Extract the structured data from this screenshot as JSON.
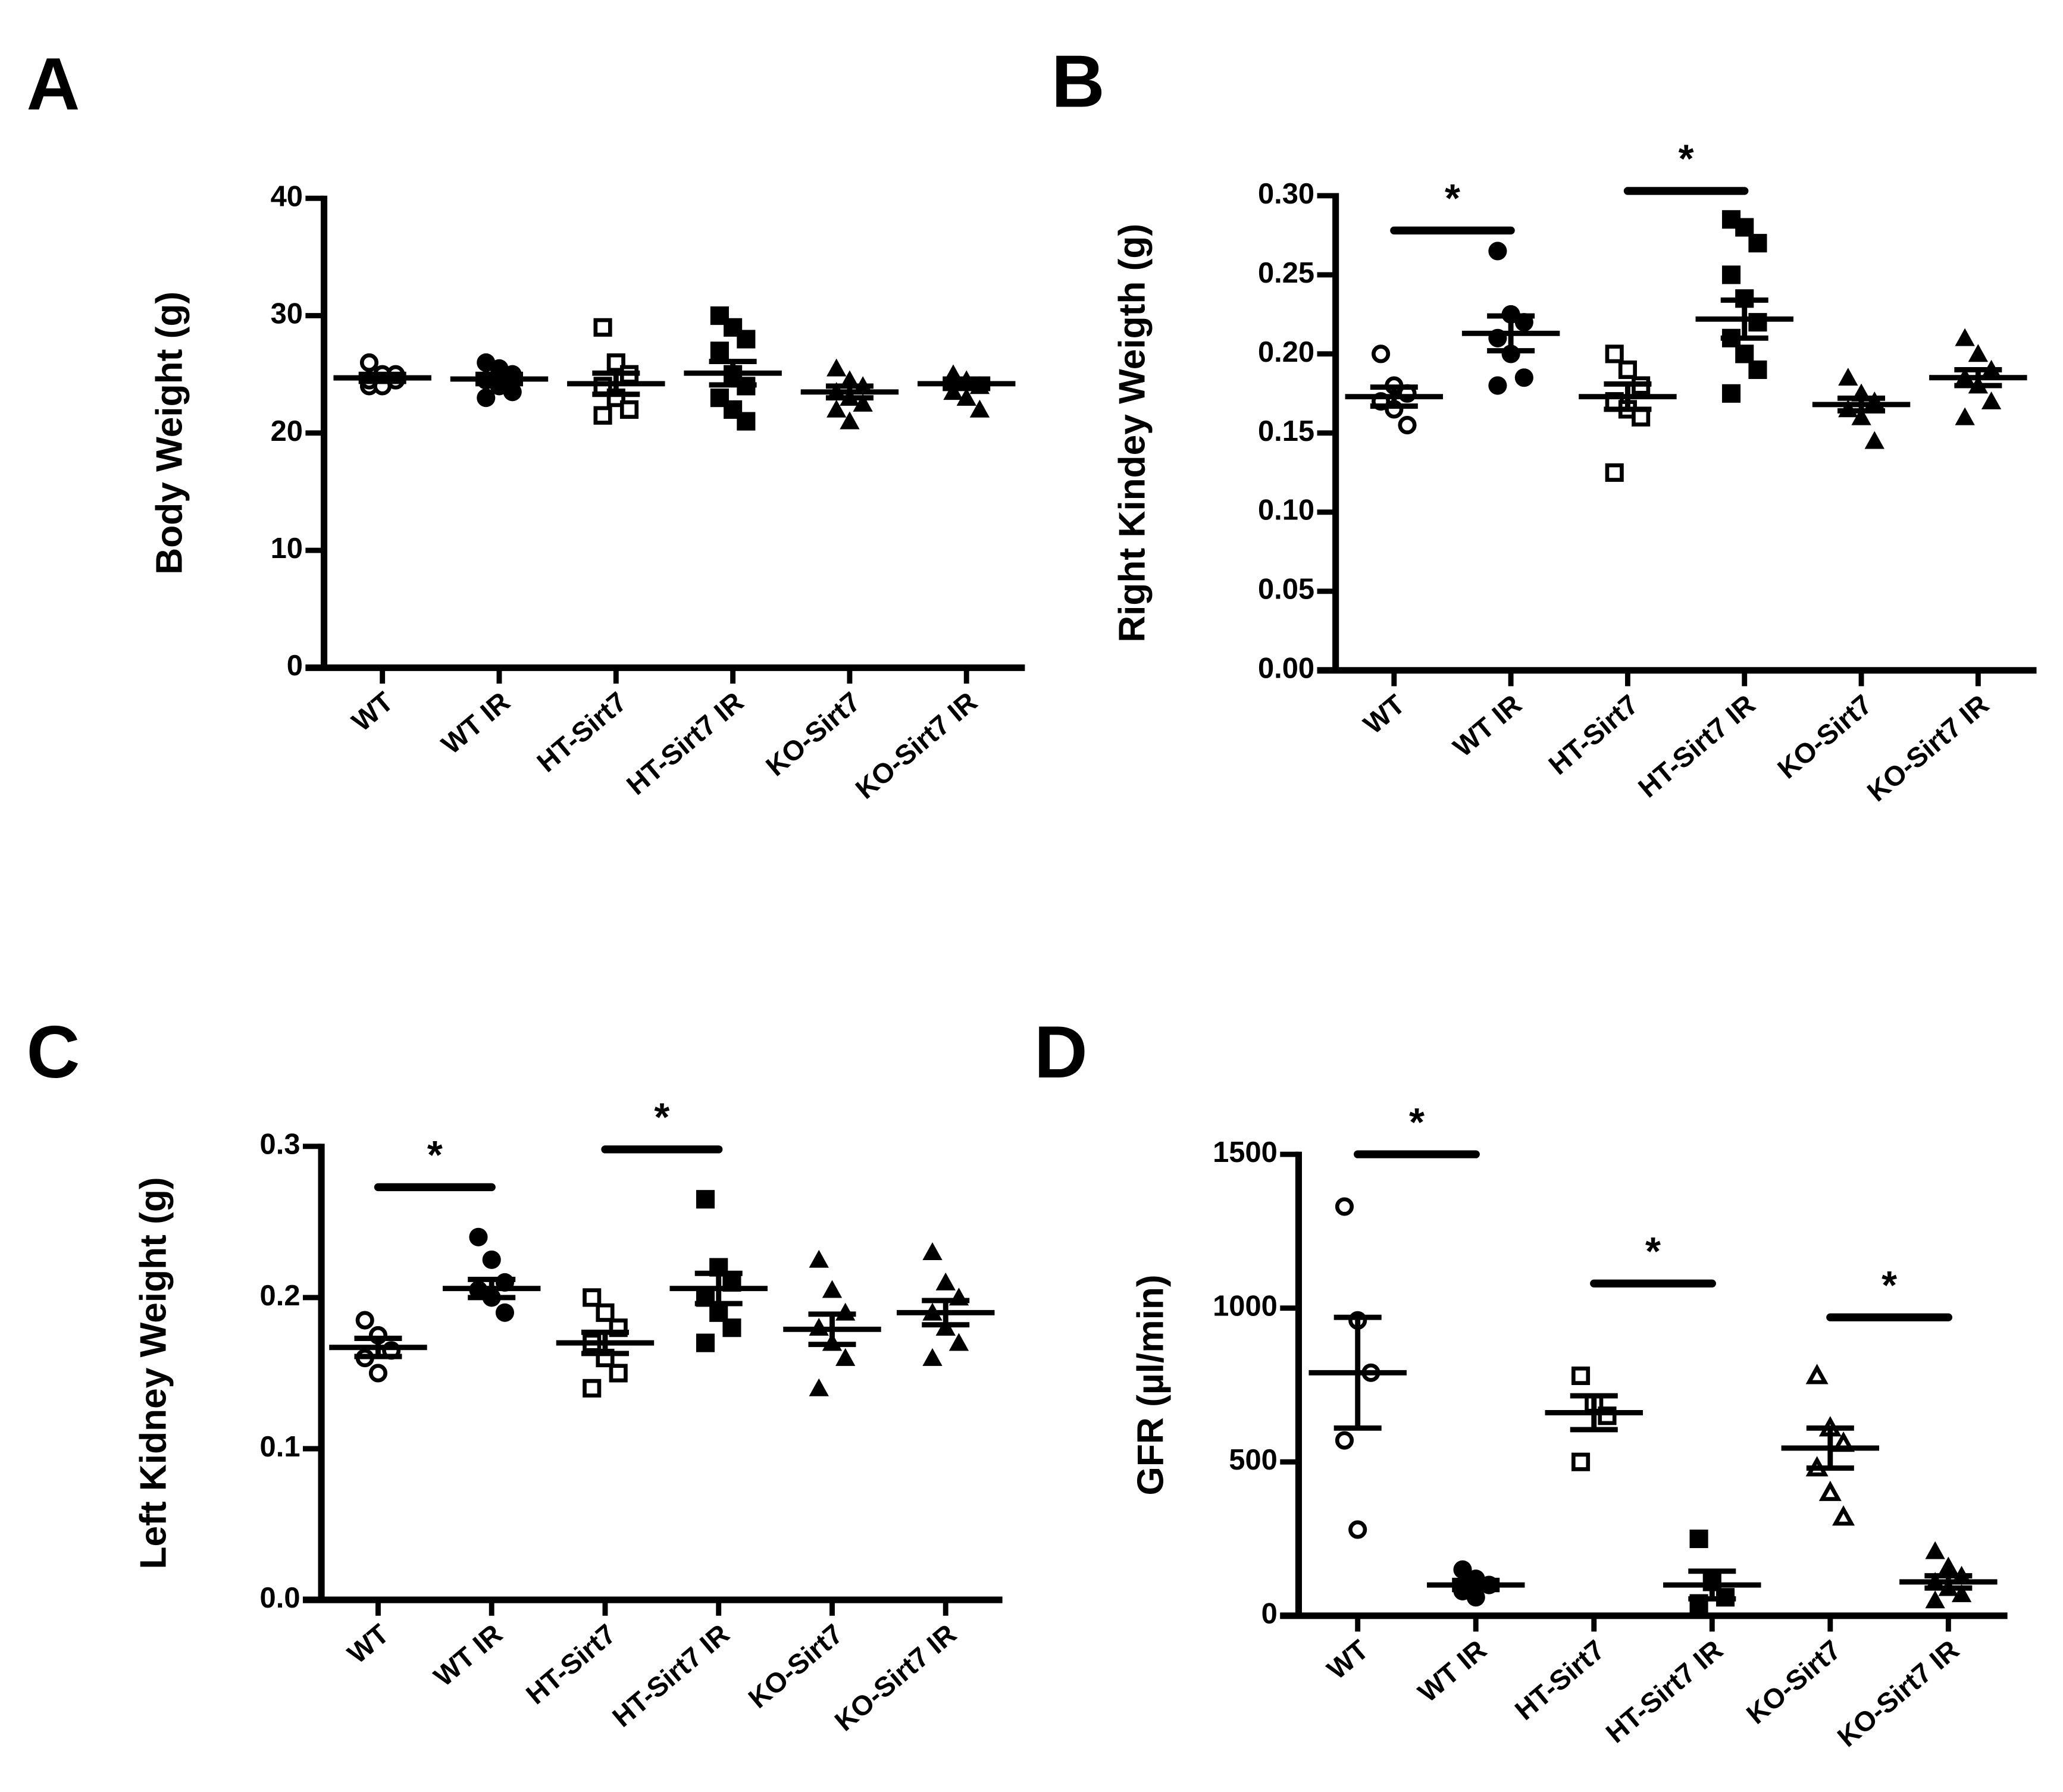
{
  "chart_data": [
    {
      "type": "strip",
      "panel": "A",
      "ylabel": "Body Weight  (g)",
      "categories": [
        "WT",
        "WT IR",
        "HT-Sirt7",
        "HT-Sirt7 IR",
        "KO-Sirt7",
        "KO-Sirt7 IR"
      ],
      "markers": [
        "open-circle",
        "circle",
        "open-square",
        "square",
        "triangle",
        "triangle"
      ],
      "color": "#000000",
      "points": [
        [
          26,
          25,
          24.5,
          24,
          24,
          25,
          24.5
        ],
        [
          26,
          25.5,
          25,
          24.5,
          24,
          23.5,
          23
        ],
        [
          29,
          26,
          25,
          24,
          23,
          22,
          21.5
        ],
        [
          30,
          29,
          28,
          27,
          25,
          24,
          23,
          22,
          21
        ],
        [
          25.5,
          24.5,
          24,
          23.5,
          23,
          22.5,
          22,
          21
        ],
        [
          25,
          24.5,
          24,
          23.5,
          23,
          22
        ]
      ],
      "means": [
        24.7,
        24.6,
        24.2,
        25.1,
        23.5,
        24.2
      ],
      "sems": [
        0.3,
        0.4,
        0.9,
        1,
        0.5,
        0.4
      ],
      "ylim": [
        0,
        40
      ],
      "yticks": [
        0,
        10,
        20,
        30,
        40
      ],
      "significance": []
    },
    {
      "type": "strip",
      "panel": "B",
      "ylabel": "Right Kindey Weigth (g)",
      "categories": [
        "WT",
        "WT IR",
        "HT-Sirt7",
        "HT-Sirt7 IR",
        "KO-Sirt7",
        "KO-Sirt7 IR"
      ],
      "markers": [
        "open-circle",
        "circle",
        "open-square",
        "square",
        "triangle",
        "triangle"
      ],
      "color": "#000000",
      "points": [
        [
          0.2,
          0.18,
          0.175,
          0.17,
          0.165,
          0.155
        ],
        [
          0.265,
          0.225,
          0.22,
          0.21,
          0.2,
          0.185,
          0.18
        ],
        [
          0.2,
          0.19,
          0.18,
          0.17,
          0.165,
          0.16,
          0.125
        ],
        [
          0.285,
          0.28,
          0.27,
          0.25,
          0.235,
          0.22,
          0.21,
          0.2,
          0.19,
          0.175
        ],
        [
          0.185,
          0.175,
          0.17,
          0.165,
          0.16,
          0.145
        ],
        [
          0.21,
          0.2,
          0.19,
          0.185,
          0.18,
          0.17,
          0.16
        ]
      ],
      "means": [
        0.173,
        0.213,
        0.173,
        0.222,
        0.168,
        0.185
      ],
      "sems": [
        0.006,
        0.011,
        0.008,
        0.012,
        0.004,
        0.005
      ],
      "ylim": [
        0,
        0.3
      ],
      "yticks": [
        {
          "value": 0,
          "label": "0.00"
        },
        0.05,
        {
          "value": 0.1,
          "label": "0.10"
        },
        0.15,
        {
          "value": 0.2,
          "label": "0.20"
        },
        0.25,
        {
          "value": 0.3,
          "label": "0.30"
        }
      ],
      "significance": [
        {
          "from": 0,
          "to": 1,
          "y": 0.278,
          "label": "*"
        },
        {
          "from": 2,
          "to": 3,
          "y": 0.303,
          "label": "*"
        }
      ]
    },
    {
      "type": "strip",
      "panel": "C",
      "ylabel": "Left Kidney Weight (g)",
      "categories": [
        "WT",
        "WT IR",
        "HT-Sirt7",
        "HT-Sirt7 IR",
        "KO-Sirt7",
        "KO-Sirt7 IR"
      ],
      "markers": [
        "open-circle",
        "circle",
        "open-square",
        "square",
        "triangle",
        "triangle"
      ],
      "color": "#000000",
      "points": [
        [
          0.185,
          0.175,
          0.165,
          0.16,
          0.15
        ],
        [
          0.24,
          0.225,
          0.21,
          0.205,
          0.2,
          0.19
        ],
        [
          0.2,
          0.19,
          0.18,
          0.17,
          0.16,
          0.15,
          0.14
        ],
        [
          0.265,
          0.22,
          0.21,
          0.2,
          0.19,
          0.18,
          0.17
        ],
        [
          0.225,
          0.205,
          0.19,
          0.18,
          0.17,
          0.16,
          0.14
        ],
        [
          0.23,
          0.21,
          0.2,
          0.19,
          0.18,
          0.17,
          0.16
        ]
      ],
      "means": [
        0.167,
        0.206,
        0.17,
        0.206,
        0.179,
        0.19
      ],
      "sems": [
        0.006,
        0.006,
        0.007,
        0.01,
        0.01,
        0.008
      ],
      "ylim": [
        0,
        0.3
      ],
      "yticks": [
        {
          "value": 0,
          "label": "0.0"
        },
        0.1,
        0.2,
        0.3
      ],
      "significance": [
        {
          "from": 0,
          "to": 1,
          "y": 0.273,
          "label": "*"
        },
        {
          "from": 2,
          "to": 3,
          "y": 0.298,
          "label": "*"
        }
      ]
    },
    {
      "type": "strip",
      "panel": "D",
      "ylabel": "GFR (µl/min)",
      "categories": [
        "WT",
        "WT IR",
        "HT-Sirt7",
        "HT-Sirt7 IR",
        "KO-Sirt7",
        "KO-Sirt7 IR"
      ],
      "markers": [
        "open-circle",
        "circle",
        "open-square",
        "square",
        "open-triangle",
        "triangle"
      ],
      "color": "#000000",
      "points": [
        [
          1330,
          960,
          790,
          570,
          280
        ],
        [
          150,
          120,
          100,
          80,
          60
        ],
        [
          780,
          690,
          650,
          500
        ],
        [
          250,
          110,
          60,
          40
        ],
        [
          780,
          610,
          560,
          480,
          400,
          320
        ],
        [
          210,
          160,
          130,
          110,
          90,
          70,
          50
        ]
      ],
      "means": [
        790,
        100,
        660,
        100,
        545,
        110
      ],
      "sems": [
        180,
        15,
        55,
        45,
        65,
        20
      ],
      "ylim": [
        0,
        1500
      ],
      "yticks": [
        0,
        500,
        1000,
        1500
      ],
      "significance": [
        {
          "from": 0,
          "to": 1,
          "y": 1500,
          "label": "*"
        },
        {
          "from": 2,
          "to": 3,
          "y": 1080,
          "label": "*"
        },
        {
          "from": 4,
          "to": 5,
          "y": 970,
          "label": "*"
        }
      ]
    }
  ]
}
